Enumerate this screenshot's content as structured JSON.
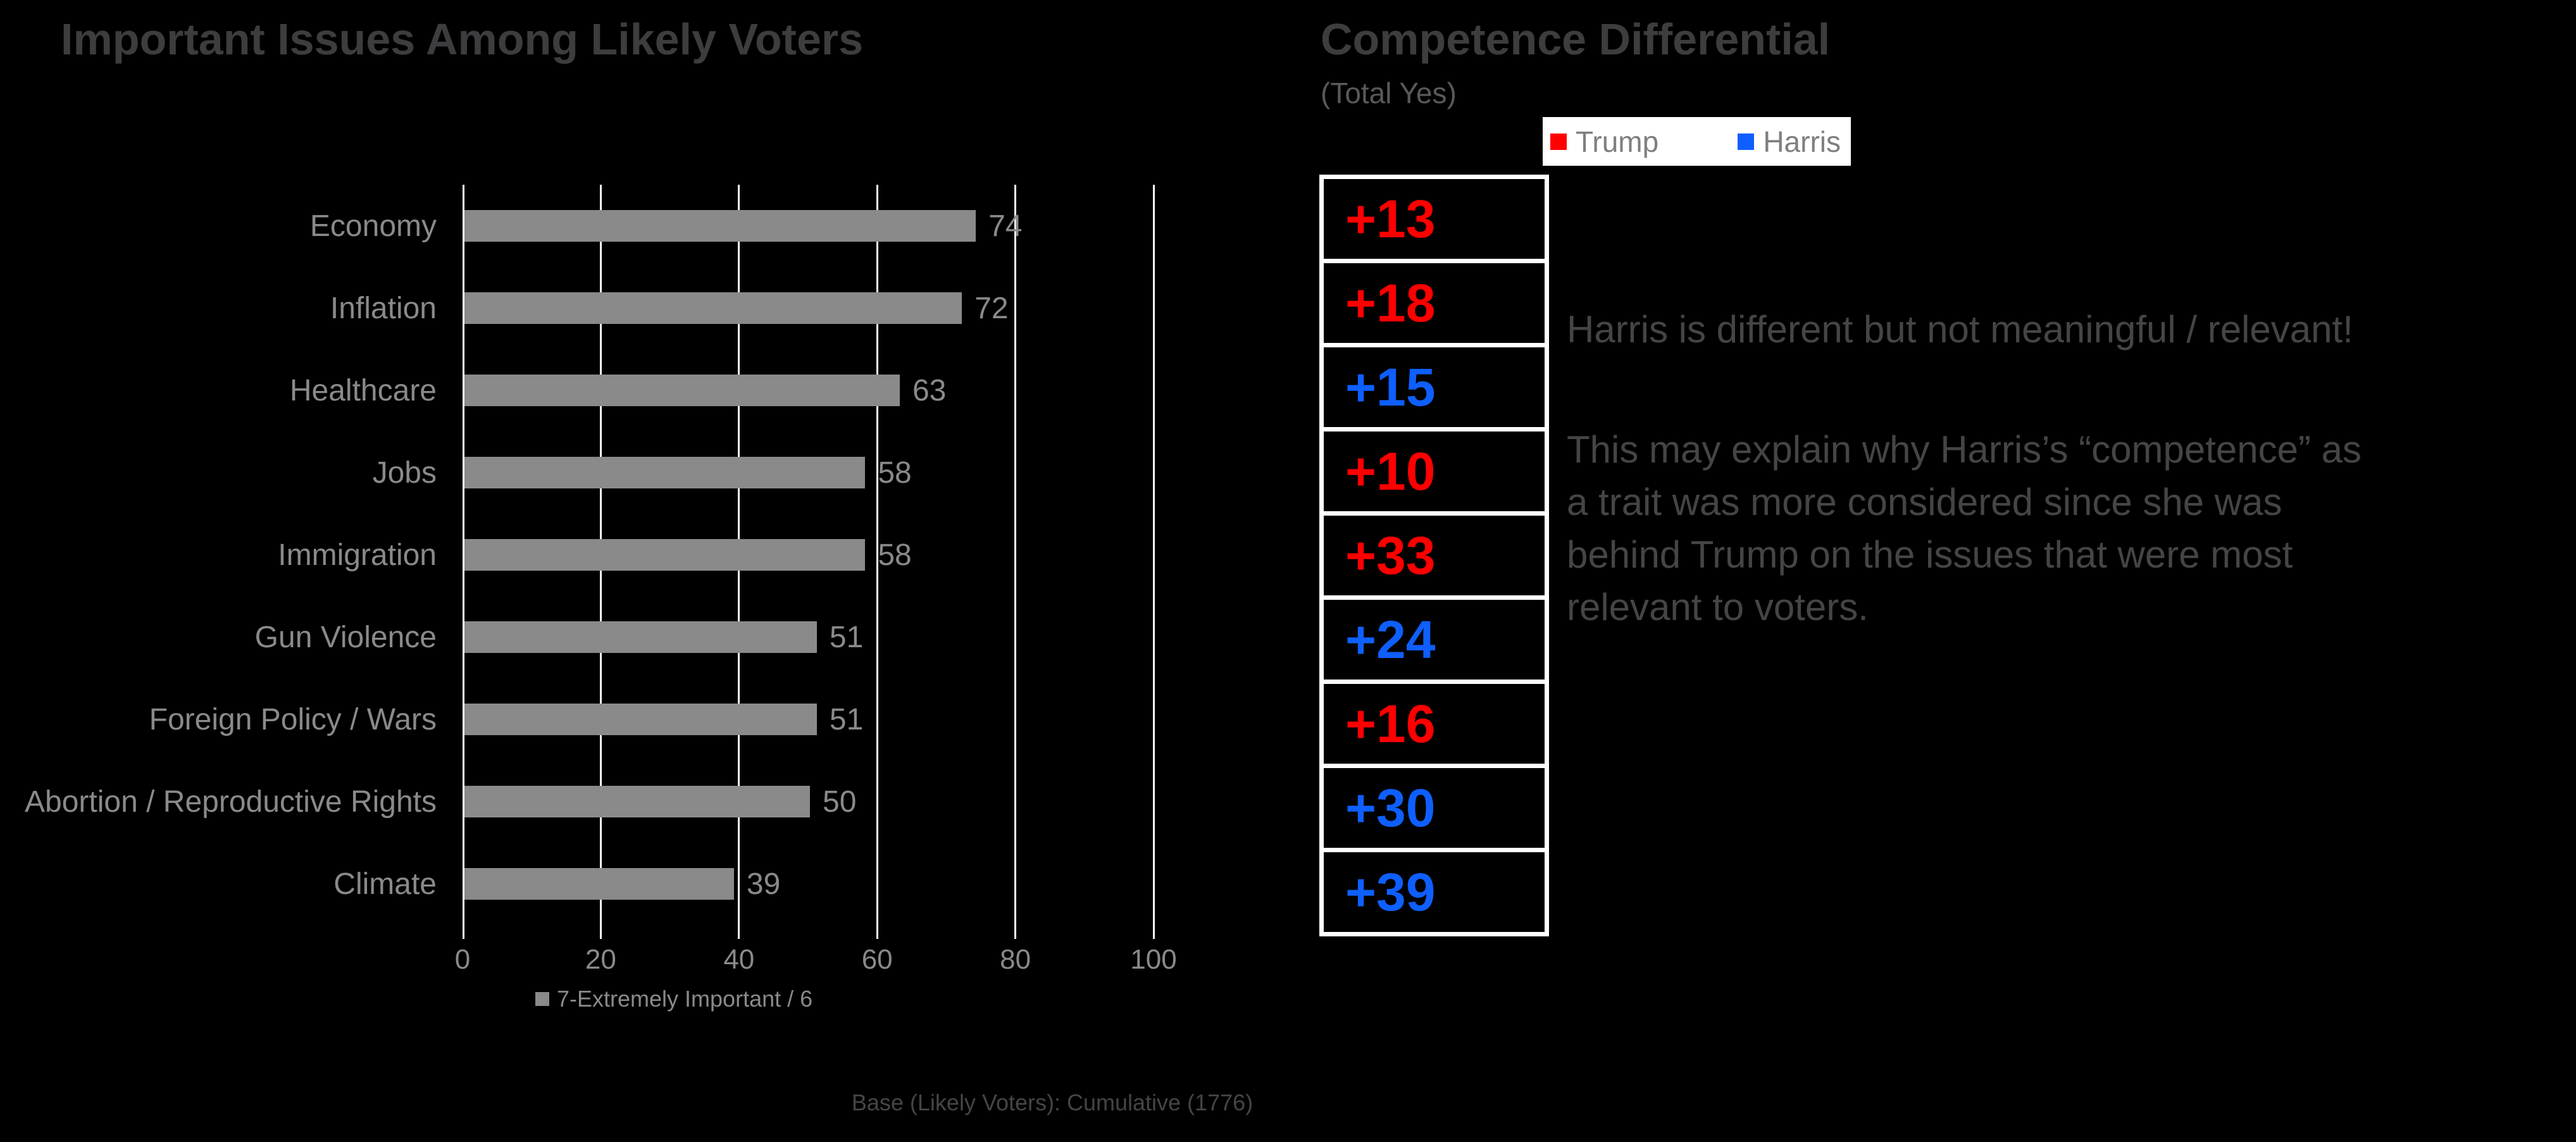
{
  "chart_data": [
    {
      "type": "bar",
      "orientation": "horizontal",
      "title": "Important Issues Among Likely Voters",
      "categories": [
        "Economy",
        "Inflation",
        "Healthcare",
        "Jobs",
        "Immigration",
        "Gun Violence",
        "Foreign Policy / Wars",
        "Abortion / Reproductive Rights",
        "Climate"
      ],
      "values": [
        74,
        72,
        63,
        58,
        58,
        51,
        51,
        50,
        39
      ],
      "series_label": "7-Extremely Important / 6",
      "xlim": [
        0,
        100
      ],
      "xticks": [
        0,
        20,
        40,
        60,
        80,
        100
      ],
      "bar_color": "#8a8a8a",
      "grid": true,
      "legend_position": "bottom"
    },
    {
      "type": "table",
      "title": "Competence Differential",
      "subtitle": "(Total Yes)",
      "legend": [
        {
          "label": "Trump",
          "color": "#fe0000"
        },
        {
          "label": "Harris",
          "color": "#0e5ffe"
        }
      ],
      "rows": [
        {
          "value": "+13",
          "leader": "Trump"
        },
        {
          "value": "+18",
          "leader": "Trump"
        },
        {
          "value": "+15",
          "leader": "Harris"
        },
        {
          "value": "+10",
          "leader": "Trump"
        },
        {
          "value": "+33",
          "leader": "Trump"
        },
        {
          "value": "+24",
          "leader": "Harris"
        },
        {
          "value": "+16",
          "leader": "Trump"
        },
        {
          "value": "+30",
          "leader": "Harris"
        },
        {
          "value": "+39",
          "leader": "Harris"
        }
      ]
    }
  ],
  "annotations": {
    "headline": "Harris is different but not meaningful / relevant!",
    "body_lines": [
      "This may explain why Harris’s “competence” as",
      "a trait was more considered since she was",
      "behind Trump on the issues that were most",
      "relevant to voters."
    ]
  },
  "footer": {
    "base_note": "Base (Likely Voters): Cumulative (1776)"
  }
}
